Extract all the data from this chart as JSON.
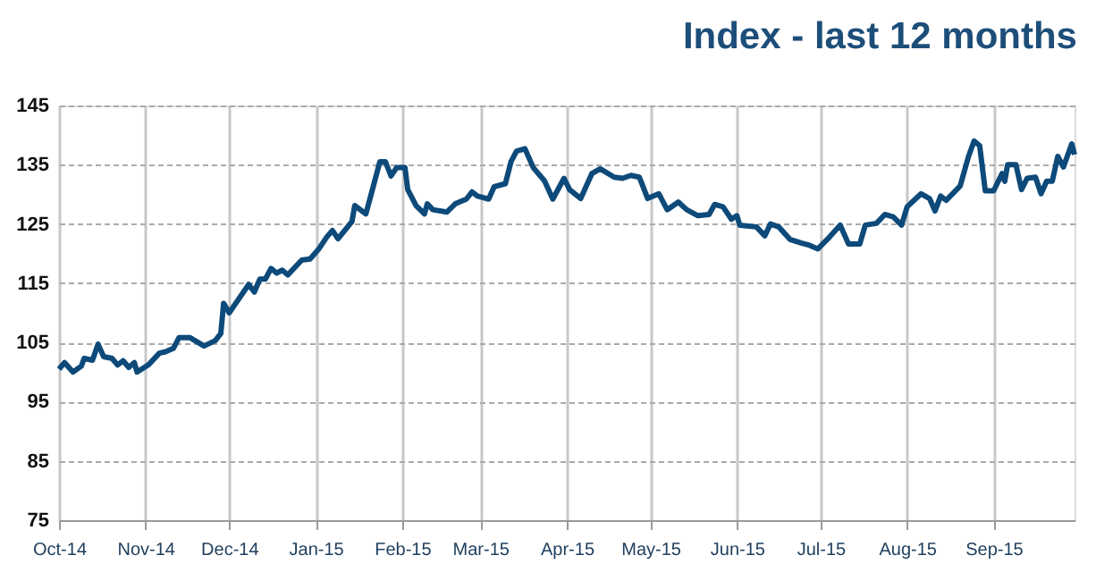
{
  "chart_data": {
    "type": "line",
    "title": "Index - last 12 months",
    "x": [
      "2014-10-01",
      "2014-10-03",
      "2014-10-06",
      "2014-10-09",
      "2014-10-10",
      "2014-10-13",
      "2014-10-15",
      "2014-10-17",
      "2014-10-20",
      "2014-10-22",
      "2014-10-24",
      "2014-10-26",
      "2014-10-28",
      "2014-10-29",
      "2014-11-02",
      "2014-11-06",
      "2014-11-08",
      "2014-11-11",
      "2014-11-13",
      "2014-11-17",
      "2014-11-22",
      "2014-11-26",
      "2014-11-28",
      "2014-11-29",
      "2014-12-01",
      "2014-12-08",
      "2014-12-10",
      "2014-12-12",
      "2014-12-14",
      "2014-12-16",
      "2014-12-18",
      "2014-12-20",
      "2014-12-22",
      "2014-12-27",
      "2014-12-30",
      "2015-01-02",
      "2015-01-05",
      "2015-01-07",
      "2015-01-09",
      "2015-01-14",
      "2015-01-15",
      "2015-01-19",
      "2015-01-21",
      "2015-01-24",
      "2015-01-26",
      "2015-01-28",
      "2015-01-30",
      "2015-02-02",
      "2015-02-03",
      "2015-02-06",
      "2015-02-09",
      "2015-02-10",
      "2015-02-12",
      "2015-02-17",
      "2015-02-20",
      "2015-02-24",
      "2015-02-26",
      "2015-02-28",
      "2015-03-04",
      "2015-03-06",
      "2015-03-10",
      "2015-03-12",
      "2015-03-14",
      "2015-03-17",
      "2015-03-20",
      "2015-03-24",
      "2015-03-27",
      "2015-03-31",
      "2015-04-02",
      "2015-04-06",
      "2015-04-10",
      "2015-04-13",
      "2015-04-18",
      "2015-04-21",
      "2015-04-24",
      "2015-04-27",
      "2015-04-30",
      "2015-05-04",
      "2015-05-07",
      "2015-05-11",
      "2015-05-14",
      "2015-05-18",
      "2015-05-22",
      "2015-05-24",
      "2015-05-27",
      "2015-05-30",
      "2015-06-01",
      "2015-06-02",
      "2015-06-08",
      "2015-06-11",
      "2015-06-13",
      "2015-06-16",
      "2015-06-20",
      "2015-06-24",
      "2015-06-27",
      "2015-06-30",
      "2015-07-04",
      "2015-07-08",
      "2015-07-11",
      "2015-07-15",
      "2015-07-17",
      "2015-07-21",
      "2015-07-24",
      "2015-07-27",
      "2015-07-30",
      "2015-08-01",
      "2015-08-06",
      "2015-08-09",
      "2015-08-11",
      "2015-08-13",
      "2015-08-15",
      "2015-08-20",
      "2015-08-23",
      "2015-08-25",
      "2015-08-27",
      "2015-08-29",
      "2015-09-01",
      "2015-09-04",
      "2015-09-05",
      "2015-09-06",
      "2015-09-09",
      "2015-09-11",
      "2015-09-13",
      "2015-09-16",
      "2015-09-18",
      "2015-09-20",
      "2015-09-22",
      "2015-09-24",
      "2015-09-26",
      "2015-09-29",
      "2015-09-30"
    ],
    "series": [
      {
        "color": "#0d4a7a",
        "values": [
          100.5,
          101.6,
          100,
          101,
          102.3,
          102,
          104.7,
          102.6,
          102.3,
          101.2,
          101.9,
          100.8,
          101.6,
          100,
          101.2,
          103.2,
          103.4,
          104,
          105.8,
          105.8,
          104.4,
          105.3,
          106.5,
          111.6,
          110,
          114.8,
          113.5,
          115.7,
          115.7,
          117.5,
          116.7,
          117.2,
          116.4,
          118.9,
          119.1,
          120.7,
          122.8,
          123.9,
          122.5,
          125.4,
          128.1,
          126.7,
          130.2,
          135.5,
          135.5,
          133.1,
          134.5,
          134.5,
          130.8,
          128.1,
          126.7,
          128.4,
          127.4,
          127,
          128.4,
          129.2,
          130.4,
          129.7,
          129.2,
          131.3,
          131.8,
          135.5,
          137.3,
          137.7,
          134.5,
          132.3,
          129.2,
          132.7,
          130.8,
          129.3,
          133.5,
          134.3,
          132.9,
          132.7,
          133.2,
          132.9,
          129.3,
          130.1,
          127.4,
          128.7,
          127.4,
          126.4,
          126.6,
          128.3,
          127.9,
          125.8,
          126.4,
          124.8,
          124.5,
          123,
          125,
          124.5,
          122.4,
          121.8,
          121.4,
          120.8,
          122.7,
          124.8,
          121.6,
          121.6,
          124.8,
          125.1,
          126.6,
          126.2,
          124.8,
          127.9,
          130.1,
          129.3,
          127.2,
          129.7,
          129,
          131.4,
          136.4,
          139,
          138.2,
          130.6,
          130.6,
          133.5,
          132.2,
          135,
          135,
          130.8,
          132.7,
          132.9,
          130.1,
          132.2,
          132.2,
          136.4,
          134.6,
          138.5,
          136.7
        ]
      }
    ],
    "xlim": [
      "2014-10-01",
      "2015-09-30"
    ],
    "xticks": [
      {
        "value": "2014-10-01",
        "label": "Oct-14"
      },
      {
        "value": "2014-11-01",
        "label": "Nov-14"
      },
      {
        "value": "2014-12-01",
        "label": "Dec-14"
      },
      {
        "value": "2015-01-01",
        "label": "Jan-15"
      },
      {
        "value": "2015-02-01",
        "label": "Feb-15"
      },
      {
        "value": "2015-03-01",
        "label": "Mar-15"
      },
      {
        "value": "2015-04-01",
        "label": "Apr-15"
      },
      {
        "value": "2015-05-01",
        "label": "May-15"
      },
      {
        "value": "2015-06-01",
        "label": "Jun-15"
      },
      {
        "value": "2015-07-01",
        "label": "Jul-15"
      },
      {
        "value": "2015-08-01",
        "label": "Aug-15"
      },
      {
        "value": "2015-09-01",
        "label": "Sep-15"
      }
    ],
    "ylim": [
      75,
      145
    ],
    "yticks": [
      75,
      85,
      95,
      105,
      115,
      125,
      135,
      145
    ],
    "grid": true,
    "legend": false,
    "marker": "none",
    "line_style": "solid"
  }
}
